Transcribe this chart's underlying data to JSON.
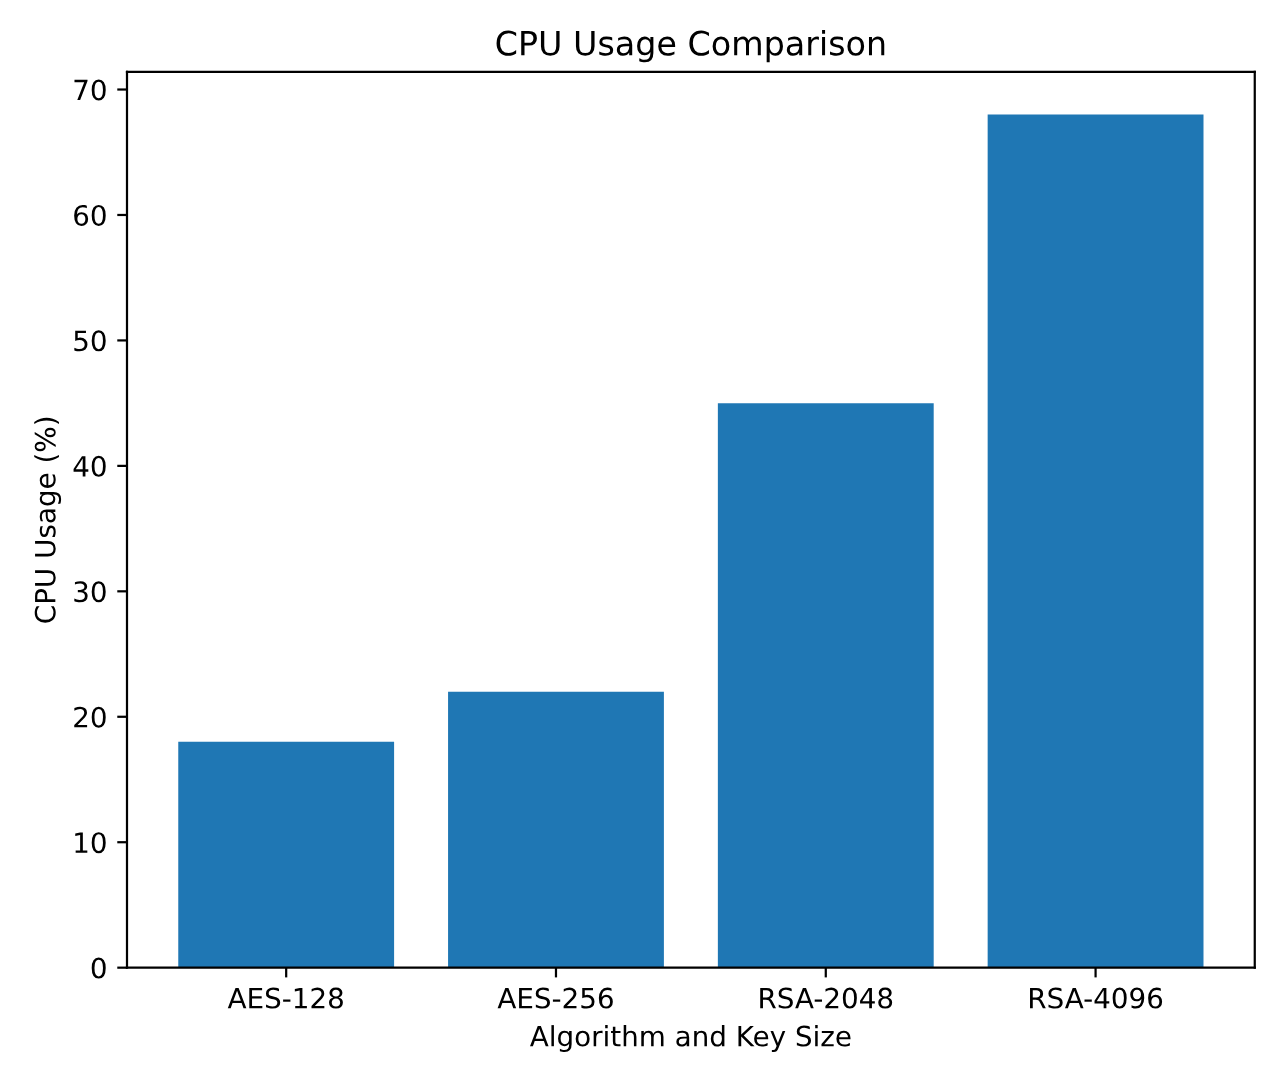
{
  "chart_data": {
    "type": "bar",
    "title": "CPU Usage Comparison",
    "xlabel": "Algorithm and Key Size",
    "ylabel": "CPU Usage (%)",
    "categories": [
      "AES-128",
      "AES-256",
      "RSA-2048",
      "RSA-4096"
    ],
    "values": [
      18,
      22,
      45,
      68
    ],
    "color": "#1f77b4",
    "ylim": [
      0,
      71.4
    ],
    "yticks": [
      0,
      10,
      20,
      30,
      40,
      50,
      60,
      70
    ],
    "grid": false
  }
}
